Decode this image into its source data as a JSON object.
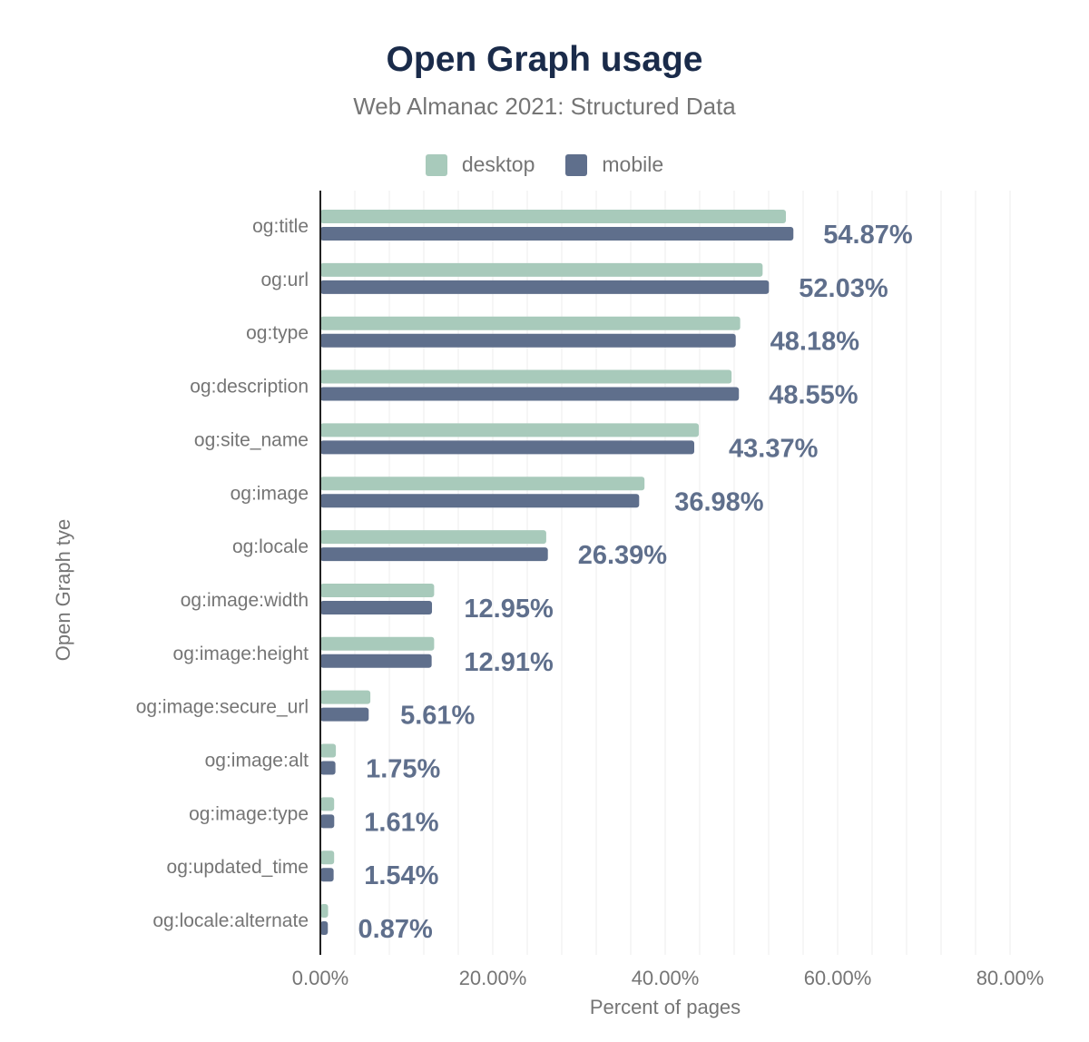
{
  "chart_data": {
    "type": "bar",
    "orientation": "horizontal",
    "title": "Open Graph usage",
    "subtitle": "Web Almanac 2021: Structured Data",
    "xlabel": "Percent of pages",
    "ylabel": "Open Graph tye",
    "xlim": [
      0,
      80
    ],
    "xticks": [
      "0.00%",
      "20.00%",
      "40.00%",
      "60.00%",
      "80.00%"
    ],
    "grid": true,
    "legend_position": "top",
    "categories": [
      "og:title",
      "og:url",
      "og:type",
      "og:description",
      "og:site_name",
      "og:image",
      "og:locale",
      "og:image:width",
      "og:image:height",
      "og:image:secure_url",
      "og:image:alt",
      "og:image:type",
      "og:updated_time",
      "og:locale:alternate"
    ],
    "series": [
      {
        "name": "desktop",
        "color": "#a8cabb",
        "values": [
          54.0,
          51.3,
          48.7,
          47.7,
          43.9,
          37.6,
          26.2,
          13.2,
          13.2,
          5.8,
          1.8,
          1.6,
          1.6,
          0.9
        ]
      },
      {
        "name": "mobile",
        "color": "#5f6f8c",
        "values": [
          54.87,
          52.03,
          48.18,
          48.55,
          43.37,
          36.98,
          26.39,
          12.95,
          12.91,
          5.61,
          1.75,
          1.61,
          1.54,
          0.87
        ]
      }
    ],
    "data_labels": [
      "54.87%",
      "52.03%",
      "48.18%",
      "48.55%",
      "43.37%",
      "36.98%",
      "26.39%",
      "12.95%",
      "12.91%",
      "5.61%",
      "1.75%",
      "1.61%",
      "1.54%",
      "0.87%"
    ]
  }
}
